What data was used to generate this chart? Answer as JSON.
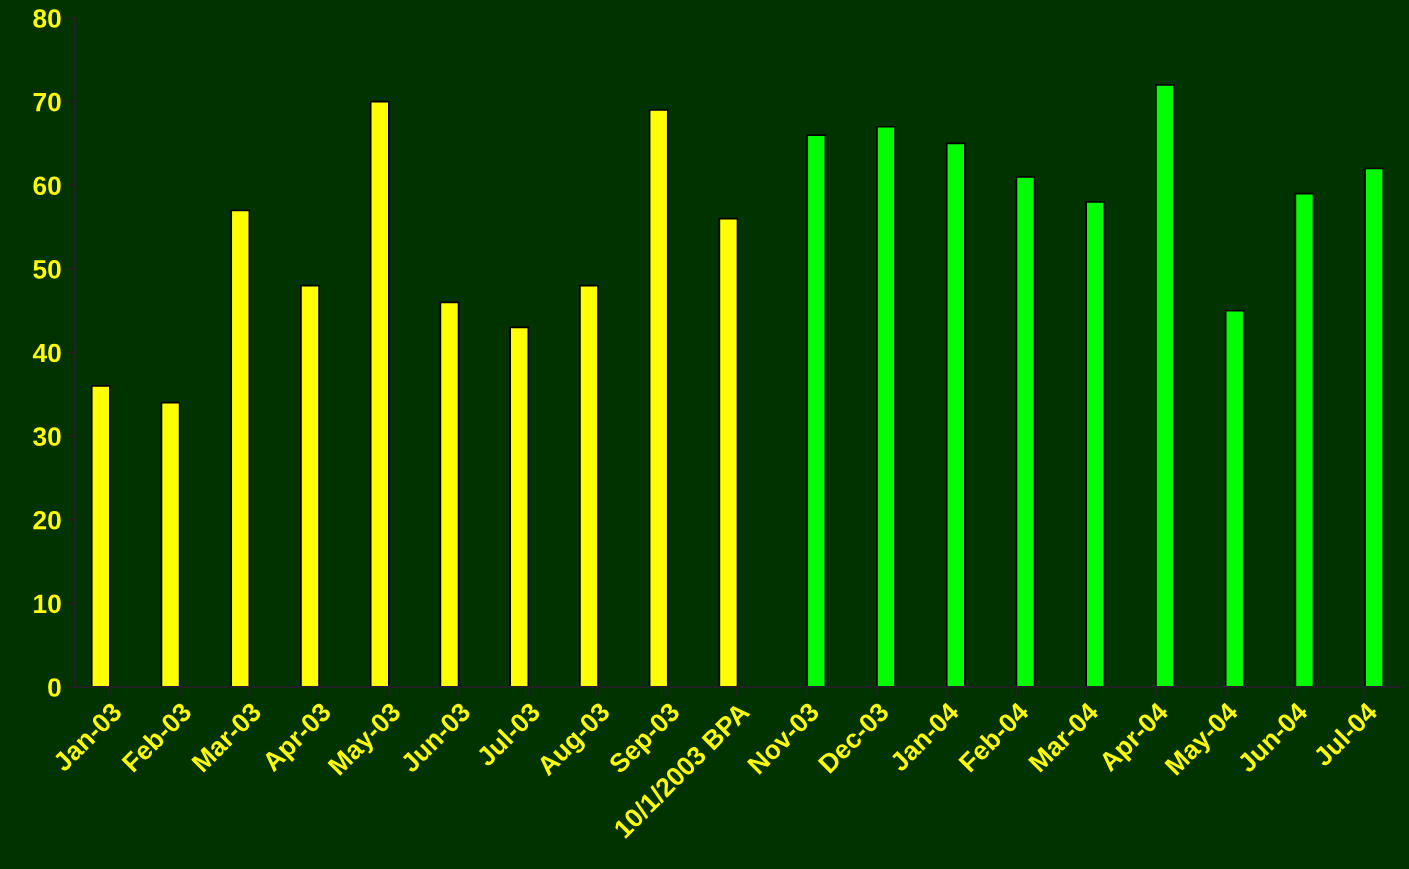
{
  "chart_data": {
    "type": "bar",
    "categories": [
      "Jan-03",
      "Feb-03",
      "Mar-03",
      "Apr-03",
      "May-03",
      "Jun-03",
      "Jul-03",
      "Aug-03",
      "Sep-03",
      "10/1/2003 BPA",
      "Nov-03",
      "Dec-03",
      "Jan-04",
      "Feb-04",
      "Mar-04",
      "Apr-04",
      "May-04",
      "Jun-04",
      "Jul-04"
    ],
    "series": [
      {
        "color": "#ffff00",
        "values": [
          36,
          34,
          57,
          48,
          70,
          46,
          43,
          48,
          69,
          56,
          null,
          null,
          null,
          null,
          null,
          null,
          null,
          null,
          null
        ]
      },
      {
        "color": "#00ff00",
        "values": [
          null,
          null,
          null,
          null,
          null,
          null,
          null,
          null,
          null,
          null,
          66,
          67,
          65,
          61,
          58,
          72,
          45,
          59,
          62
        ]
      }
    ],
    "ylim": [
      0,
      80
    ],
    "yticks": [
      0,
      10,
      20,
      30,
      40,
      50,
      60,
      70,
      80
    ],
    "grid": false,
    "legend": false
  }
}
